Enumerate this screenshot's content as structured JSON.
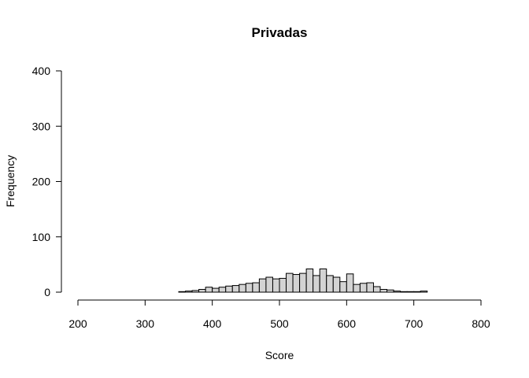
{
  "chart_data": {
    "type": "bar",
    "title": "Privadas",
    "xlabel": "Score",
    "ylabel": "Frequency",
    "xlim": [
      200,
      800
    ],
    "ylim": [
      0,
      400
    ],
    "xticks": [
      200,
      300,
      400,
      500,
      600,
      700,
      800
    ],
    "yticks": [
      0,
      100,
      200,
      300,
      400
    ],
    "bin_width": 10,
    "bins": [
      {
        "x0": 350,
        "x1": 360,
        "count": 1
      },
      {
        "x0": 360,
        "x1": 370,
        "count": 2
      },
      {
        "x0": 370,
        "x1": 380,
        "count": 3
      },
      {
        "x0": 380,
        "x1": 390,
        "count": 5
      },
      {
        "x0": 390,
        "x1": 400,
        "count": 9
      },
      {
        "x0": 400,
        "x1": 410,
        "count": 7
      },
      {
        "x0": 410,
        "x1": 420,
        "count": 9
      },
      {
        "x0": 420,
        "x1": 430,
        "count": 11
      },
      {
        "x0": 430,
        "x1": 440,
        "count": 12
      },
      {
        "x0": 440,
        "x1": 450,
        "count": 14
      },
      {
        "x0": 450,
        "x1": 460,
        "count": 16
      },
      {
        "x0": 460,
        "x1": 470,
        "count": 17
      },
      {
        "x0": 470,
        "x1": 480,
        "count": 24
      },
      {
        "x0": 480,
        "x1": 490,
        "count": 27
      },
      {
        "x0": 490,
        "x1": 500,
        "count": 24
      },
      {
        "x0": 500,
        "x1": 510,
        "count": 25
      },
      {
        "x0": 510,
        "x1": 520,
        "count": 34
      },
      {
        "x0": 520,
        "x1": 530,
        "count": 32
      },
      {
        "x0": 530,
        "x1": 540,
        "count": 34
      },
      {
        "x0": 540,
        "x1": 550,
        "count": 42
      },
      {
        "x0": 550,
        "x1": 560,
        "count": 30
      },
      {
        "x0": 560,
        "x1": 570,
        "count": 42
      },
      {
        "x0": 570,
        "x1": 580,
        "count": 30
      },
      {
        "x0": 580,
        "x1": 590,
        "count": 27
      },
      {
        "x0": 590,
        "x1": 600,
        "count": 19
      },
      {
        "x0": 600,
        "x1": 610,
        "count": 33
      },
      {
        "x0": 610,
        "x1": 620,
        "count": 14
      },
      {
        "x0": 620,
        "x1": 630,
        "count": 16
      },
      {
        "x0": 630,
        "x1": 640,
        "count": 17
      },
      {
        "x0": 640,
        "x1": 650,
        "count": 10
      },
      {
        "x0": 650,
        "x1": 660,
        "count": 5
      },
      {
        "x0": 660,
        "x1": 670,
        "count": 4
      },
      {
        "x0": 670,
        "x1": 680,
        "count": 2
      },
      {
        "x0": 680,
        "x1": 690,
        "count": 1
      },
      {
        "x0": 690,
        "x1": 700,
        "count": 1
      },
      {
        "x0": 700,
        "x1": 710,
        "count": 1
      },
      {
        "x0": 710,
        "x1": 720,
        "count": 2
      }
    ],
    "bar_fill": "#d3d3d3",
    "bar_stroke": "#000000",
    "grid": false,
    "legend": "none"
  }
}
